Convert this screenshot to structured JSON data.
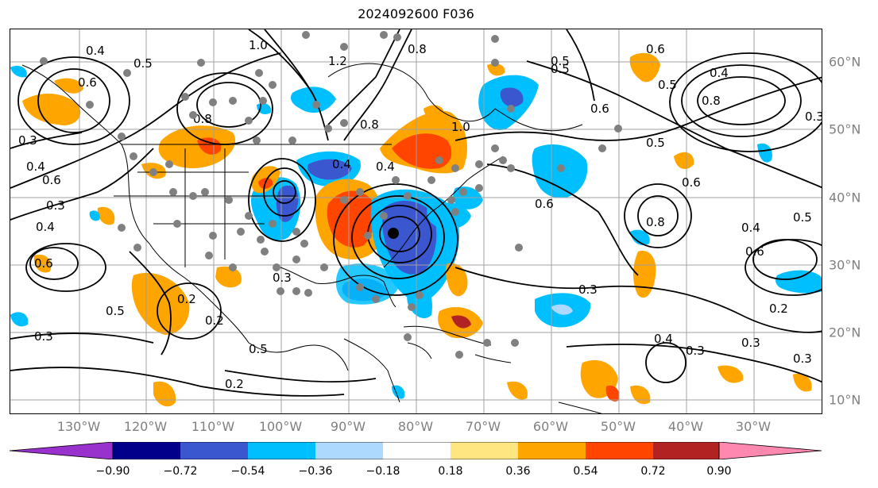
{
  "title": "2024092600 F036",
  "lon_labels": [
    "130°W",
    "120°W",
    "110°W",
    "100°W",
    "90°W",
    "80°W",
    "70°W",
    "60°W",
    "50°W",
    "40°W",
    "30°W"
  ],
  "lat_labels": [
    "60°N",
    "50°N",
    "40°N",
    "30°N",
    "20°N",
    "10°N"
  ],
  "colorbar": {
    "ticks": [
      "−0.90",
      "−0.72",
      "−0.54",
      "−0.36",
      "−0.18",
      "0.18",
      "0.36",
      "0.54",
      "0.72",
      "0.90"
    ],
    "colors": [
      "#9932cc",
      "#00008b",
      "#3a57d0",
      "#00bfff",
      "#add8ff",
      "#ffffff",
      "#ffe680",
      "#ffa500",
      "#ff4500",
      "#b22222",
      "#ff88b0"
    ]
  },
  "contour_labels": [
    "0.4",
    "0.5",
    "0.6",
    "0.3",
    "0.4",
    "0.6",
    "0.3",
    "0.4",
    "0.8",
    "1.0",
    "1.2",
    "0.8",
    "0.6",
    "0.5",
    "0.8",
    "0.4",
    "0.6",
    "0.5",
    "0.6",
    "0.3",
    "0.8",
    "0.4",
    "0.6",
    "0.5",
    "0.4",
    "0.6",
    "0.5",
    "0.2",
    "0.3",
    "0.2",
    "0.3",
    "0.5",
    "0.2",
    "0.3",
    "0.4",
    "0.3",
    "0.2",
    "0.3",
    "0.5",
    "0.4",
    "0.6",
    "0.8",
    "1.0",
    "0.3",
    "0.5"
  ],
  "palette": {
    "orange": "#ffa500",
    "red": "#ff4500",
    "dark_red": "#b22222",
    "light_blue": "#00bfff",
    "blue": "#3a57d0",
    "pale_blue": "#add8ff",
    "dot": "#808080",
    "grid": "#a0a0a0"
  }
}
